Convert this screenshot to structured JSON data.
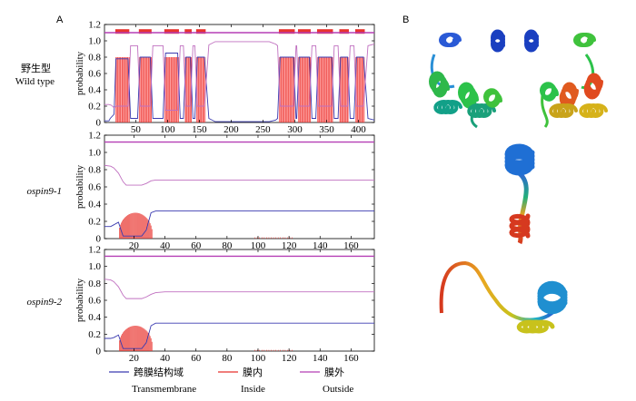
{
  "panels": {
    "a": "A",
    "b": "B"
  },
  "rows": [
    {
      "label_cn": "野生型",
      "label_en": "Wild type",
      "italic": false
    },
    {
      "label_cn": "",
      "label_en": "ospin9-1",
      "italic": true
    },
    {
      "label_cn": "",
      "label_en": "ospin9-2",
      "italic": true
    }
  ],
  "legend": [
    {
      "cn": "跨膜结构域",
      "en": "Transmembrane",
      "color": "#3b3bb0"
    },
    {
      "cn": "膜内",
      "en": "Inside",
      "color": "#e8322c"
    },
    {
      "cn": "膜外",
      "en": "Outside",
      "color": "#b53fb5"
    }
  ],
  "colors": {
    "tm": "#3b3bb0",
    "inside": "#e8322c",
    "outside": "#b53fb5",
    "fill": "#ff5a5a"
  },
  "chart_data": [
    {
      "type": "line",
      "ylabel": "probability",
      "xlim": [
        1,
        425
      ],
      "ylim": [
        0,
        1.2
      ],
      "xticks": [
        50,
        100,
        150,
        200,
        250,
        300,
        350,
        400
      ],
      "yticks": [
        0,
        0.2,
        0.4,
        0.6,
        0.8,
        1.0,
        1.2
      ],
      "tm_segments": [
        [
          18,
          40
        ],
        [
          55,
          75
        ],
        [
          95,
          118
        ],
        [
          127,
          138
        ],
        [
          145,
          160
        ],
        [
          275,
          300
        ],
        [
          305,
          325
        ],
        [
          335,
          360
        ],
        [
          370,
          385
        ],
        [
          395,
          410
        ]
      ],
      "top_bar_segments": [
        [
          18,
          40
        ],
        [
          55,
          75
        ],
        [
          95,
          118
        ],
        [
          127,
          138
        ],
        [
          145,
          160
        ],
        [
          275,
          300
        ],
        [
          305,
          325
        ],
        [
          335,
          360
        ],
        [
          370,
          385
        ],
        [
          395,
          410
        ]
      ],
      "series": [
        {
          "name": "Transmembrane",
          "x": [
            1,
            8,
            10,
            16,
            19,
            38,
            42,
            53,
            57,
            73,
            77,
            93,
            97,
            116,
            120,
            125,
            129,
            136,
            140,
            143,
            147,
            158,
            165,
            175,
            200,
            260,
            270,
            273,
            277,
            298,
            302,
            303,
            307,
            323,
            327,
            333,
            337,
            358,
            362,
            368,
            372,
            383,
            387,
            393,
            397,
            408,
            415,
            425
          ],
          "y": [
            0.02,
            0.02,
            0.05,
            0.1,
            0.78,
            0.78,
            0.05,
            0.05,
            0.8,
            0.8,
            0.05,
            0.05,
            0.85,
            0.85,
            0.05,
            0.05,
            0.8,
            0.8,
            0.05,
            0.05,
            0.8,
            0.8,
            0.05,
            0.01,
            0.01,
            0.01,
            0.03,
            0.05,
            0.8,
            0.8,
            0.05,
            0.05,
            0.8,
            0.8,
            0.05,
            0.05,
            0.8,
            0.8,
            0.05,
            0.05,
            0.8,
            0.8,
            0.05,
            0.05,
            0.8,
            0.8,
            0.05,
            0.03
          ]
        },
        {
          "name": "Outside",
          "x": [
            1,
            8,
            12,
            16,
            19,
            38,
            42,
            53,
            57,
            73,
            77,
            93,
            97,
            116,
            120,
            125,
            129,
            136,
            140,
            143,
            147,
            158,
            165,
            175,
            200,
            260,
            270,
            273,
            277,
            298,
            302,
            303,
            307,
            323,
            327,
            333,
            337,
            358,
            362,
            368,
            372,
            383,
            387,
            393,
            397,
            408,
            415,
            425
          ],
          "y": [
            0.22,
            0.22,
            0.21,
            0.18,
            0.2,
            0.2,
            0.94,
            0.94,
            0.2,
            0.2,
            0.94,
            0.94,
            0.15,
            0.15,
            0.94,
            0.94,
            0.2,
            0.2,
            0.94,
            0.94,
            0.2,
            0.2,
            0.95,
            0.99,
            0.99,
            0.99,
            0.96,
            0.94,
            0.2,
            0.2,
            0.94,
            0.94,
            0.2,
            0.2,
            0.94,
            0.94,
            0.2,
            0.2,
            0.94,
            0.94,
            0.2,
            0.2,
            0.94,
            0.94,
            0.2,
            0.2,
            0.94,
            0.96
          ]
        },
        {
          "name": "Inside",
          "x": [
            1,
            425
          ],
          "y": [
            1.1,
            1.1
          ]
        }
      ]
    },
    {
      "type": "line",
      "ylabel": "probability",
      "xlim": [
        1,
        175
      ],
      "ylim": [
        0,
        1.2
      ],
      "xticks": [
        20,
        40,
        60,
        80,
        100,
        120,
        140,
        160
      ],
      "yticks": [
        0,
        0.2,
        0.4,
        0.6,
        0.8,
        1.0,
        1.2
      ],
      "fill_segment": [
        10,
        32
      ],
      "fill_peak": 0.3,
      "series": [
        {
          "name": "Outside",
          "x": [
            1,
            5,
            7,
            10,
            13,
            15,
            20,
            25,
            28,
            31,
            34,
            40,
            175
          ],
          "y": [
            0.85,
            0.84,
            0.82,
            0.76,
            0.66,
            0.62,
            0.62,
            0.62,
            0.64,
            0.67,
            0.68,
            0.68,
            0.68
          ]
        },
        {
          "name": "Transmembrane",
          "x": [
            1,
            5,
            7,
            10,
            13,
            15,
            20,
            25,
            28,
            31,
            34,
            40,
            175
          ],
          "y": [
            0.14,
            0.14,
            0.16,
            0.19,
            0.03,
            0.03,
            0.03,
            0.03,
            0.1,
            0.3,
            0.32,
            0.32,
            0.32
          ]
        },
        {
          "name": "Inside",
          "x": [
            1,
            175
          ],
          "y": [
            1.12,
            1.12
          ]
        }
      ]
    },
    {
      "type": "line",
      "ylabel": "probability",
      "xlim": [
        1,
        175
      ],
      "ylim": [
        0,
        1.2
      ],
      "xticks": [
        20,
        40,
        60,
        80,
        100,
        120,
        140,
        160
      ],
      "yticks": [
        0,
        0.2,
        0.4,
        0.6,
        0.8,
        1.0,
        1.2
      ],
      "fill_segment": [
        10,
        32
      ],
      "fill_peak": 0.3,
      "series": [
        {
          "name": "Outside",
          "x": [
            1,
            5,
            7,
            10,
            13,
            15,
            20,
            25,
            28,
            31,
            34,
            40,
            175
          ],
          "y": [
            0.85,
            0.84,
            0.82,
            0.76,
            0.66,
            0.62,
            0.62,
            0.62,
            0.64,
            0.67,
            0.69,
            0.7,
            0.7
          ]
        },
        {
          "name": "Transmembrane",
          "x": [
            1,
            5,
            7,
            10,
            13,
            15,
            20,
            25,
            28,
            31,
            34,
            40,
            175
          ],
          "y": [
            0.15,
            0.15,
            0.16,
            0.19,
            0.03,
            0.03,
            0.03,
            0.03,
            0.1,
            0.3,
            0.33,
            0.33,
            0.33
          ]
        },
        {
          "name": "Inside",
          "x": [
            1,
            175
          ],
          "y": [
            1.12,
            1.12
          ]
        }
      ]
    }
  ]
}
